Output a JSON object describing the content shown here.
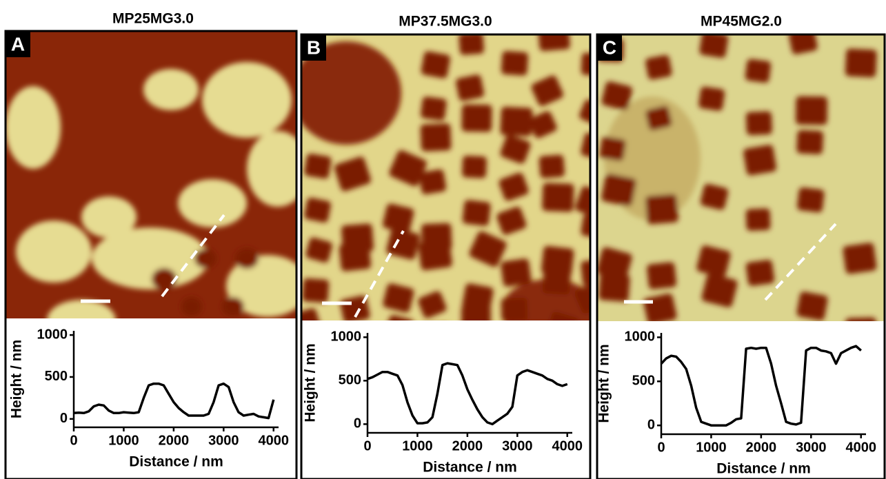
{
  "chart_data": [
    {
      "type": "line",
      "title": "MP25MG3.0",
      "panel_label": "A",
      "x_label": "Distance / nm",
      "y_label": "Height / nm",
      "x": [
        0,
        100,
        200,
        300,
        400,
        500,
        600,
        700,
        800,
        900,
        1000,
        1100,
        1200,
        1300,
        1400,
        1500,
        1600,
        1700,
        1800,
        1900,
        2000,
        2100,
        2200,
        2300,
        2400,
        2500,
        2600,
        2700,
        2800,
        2900,
        3000,
        3100,
        3200,
        3300,
        3400,
        3500,
        3600,
        3700,
        3800,
        3900,
        4000
      ],
      "series": [
        {
          "color": "#000000",
          "values": [
            70,
            75,
            70,
            90,
            150,
            170,
            160,
            100,
            70,
            70,
            80,
            75,
            70,
            80,
            250,
            400,
            420,
            420,
            400,
            300,
            200,
            130,
            80,
            40,
            40,
            40,
            40,
            60,
            200,
            400,
            420,
            380,
            200,
            80,
            40,
            50,
            60,
            30,
            20,
            10,
            230
          ]
        }
      ],
      "xlim": [
        0,
        4100
      ],
      "ylim": [
        -100,
        1050
      ],
      "xticks": [
        0,
        1000,
        2000,
        3000,
        4000
      ],
      "yticks": [
        0,
        500,
        1000
      ]
    },
    {
      "type": "line",
      "title": "MP37.5MG3.0",
      "panel_label": "B",
      "x_label": "Distance / nm",
      "y_label": "Height / nm",
      "x": [
        0,
        100,
        200,
        300,
        400,
        500,
        600,
        700,
        800,
        900,
        1000,
        1100,
        1200,
        1300,
        1400,
        1500,
        1600,
        1700,
        1800,
        1900,
        2000,
        2100,
        2200,
        2300,
        2400,
        2500,
        2600,
        2700,
        2800,
        2900,
        3000,
        3100,
        3200,
        3300,
        3400,
        3500,
        3600,
        3700,
        3800,
        3900,
        4000
      ],
      "series": [
        {
          "color": "#000000",
          "values": [
            520,
            540,
            570,
            600,
            600,
            580,
            560,
            450,
            250,
            100,
            10,
            10,
            20,
            80,
            350,
            680,
            700,
            690,
            680,
            560,
            400,
            280,
            170,
            80,
            20,
            0,
            40,
            80,
            120,
            200,
            560,
            600,
            620,
            600,
            580,
            560,
            520,
            500,
            460,
            440,
            460
          ]
        }
      ],
      "xlim": [
        0,
        4100
      ],
      "ylim": [
        -100,
        1050
      ],
      "xticks": [
        0,
        1000,
        2000,
        3000,
        4000
      ],
      "yticks": [
        0,
        500,
        1000
      ]
    },
    {
      "type": "line",
      "title": "MP45MG2.0",
      "panel_label": "C",
      "x_label": "Distance / nm",
      "y_label": "Height / nm",
      "x": [
        0,
        100,
        200,
        300,
        400,
        500,
        600,
        700,
        800,
        900,
        1000,
        1100,
        1200,
        1300,
        1400,
        1500,
        1600,
        1700,
        1800,
        1900,
        2000,
        2100,
        2200,
        2300,
        2400,
        2500,
        2600,
        2700,
        2800,
        2900,
        3000,
        3100,
        3200,
        3300,
        3400,
        3500,
        3600,
        3700,
        3800,
        3900,
        4000
      ],
      "series": [
        {
          "color": "#000000",
          "values": [
            700,
            760,
            790,
            780,
            720,
            640,
            450,
            200,
            40,
            20,
            0,
            0,
            0,
            0,
            30,
            70,
            80,
            870,
            880,
            870,
            880,
            880,
            700,
            450,
            250,
            40,
            20,
            10,
            30,
            850,
            880,
            880,
            850,
            840,
            820,
            700,
            820,
            850,
            880,
            900,
            850
          ]
        }
      ],
      "xlim": [
        0,
        4100
      ],
      "ylim": [
        -100,
        1050
      ],
      "xticks": [
        0,
        1000,
        2000,
        3000,
        4000
      ],
      "yticks": [
        0,
        500,
        1000
      ]
    }
  ]
}
